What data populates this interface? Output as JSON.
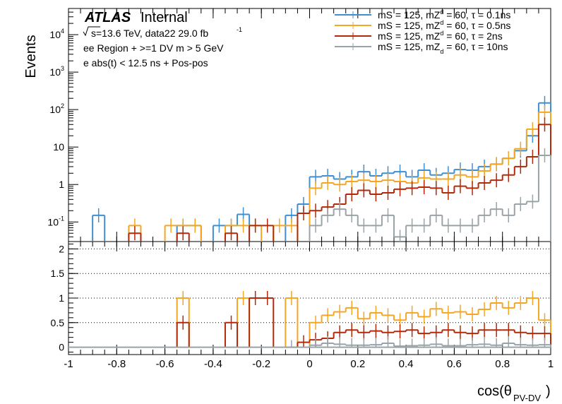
{
  "labels": {
    "atlas": "ATLAS",
    "internal": "Internal",
    "energy_prefix": "s=13.6 TeV, data22 29.0 fb",
    "energy_sup": "-1",
    "region": "ee Region + >=1 DV m > 5 GeV",
    "selection": "e abs(t) < 12.5 ns + Pos-pos",
    "ylabel": "Events",
    "xlabel": "cos(θ",
    "xlabel_sub": "PV-DV",
    "xlabel_close": ")"
  },
  "chart_data": {
    "type": "line",
    "xlim": [
      -1,
      1
    ],
    "bin_width": 0.05,
    "top_panel": {
      "ylabel": "Events",
      "yscale": "log",
      "ylim": [
        0.03,
        50000
      ],
      "ytick_labels": [
        "10^-1",
        "1",
        "10",
        "10^2",
        "10^3",
        "10^4"
      ],
      "legend_position": "top-right"
    },
    "ratio_panel": {
      "ylim": [
        -0.15,
        2.15
      ],
      "ytick_labels": [
        "0",
        "0.5",
        "1",
        "1.5",
        "2"
      ],
      "grid_lines": [
        0.5,
        1,
        1.5,
        2
      ]
    },
    "xtick_labels": [
      "-1",
      "-0.8",
      "-0.6",
      "-0.4",
      "-0.2",
      "0",
      "0.2",
      "0.4",
      "0.6",
      "0.8",
      "1"
    ],
    "xlabel": "cos(θ_PV-DV)",
    "series": [
      {
        "name": "mS = 125, mZd = 60, τ = 0.1ns",
        "legend_main": "mS = 125, mZ",
        "legend_sup": "d",
        "legend_rest": " = 60, τ = 0.1ns",
        "color": "#3f8fd2",
        "bins": [
          {
            "x": -0.875,
            "y": 0.15
          },
          {
            "x": -0.525,
            "y": 0.08
          },
          {
            "x": -0.475,
            "y": 0.08
          },
          {
            "x": -0.375,
            "y": 0.08
          },
          {
            "x": -0.325,
            "y": 0.08
          },
          {
            "x": -0.275,
            "y": 0.16
          },
          {
            "x": -0.075,
            "y": 0.15
          },
          {
            "x": -0.025,
            "y": 0.3
          },
          {
            "x": 0.025,
            "y": 1.6
          },
          {
            "x": 0.075,
            "y": 1.7
          },
          {
            "x": 0.125,
            "y": 1.4
          },
          {
            "x": 0.175,
            "y": 1.6
          },
          {
            "x": 0.225,
            "y": 2.2
          },
          {
            "x": 0.275,
            "y": 1.7
          },
          {
            "x": 0.325,
            "y": 2.0
          },
          {
            "x": 0.375,
            "y": 2.2
          },
          {
            "x": 0.425,
            "y": 1.6
          },
          {
            "x": 0.475,
            "y": 2.4
          },
          {
            "x": 0.525,
            "y": 1.8
          },
          {
            "x": 0.575,
            "y": 2.0
          },
          {
            "x": 0.625,
            "y": 2.5
          },
          {
            "x": 0.675,
            "y": 2.4
          },
          {
            "x": 0.725,
            "y": 3.0
          },
          {
            "x": 0.775,
            "y": 3.5
          },
          {
            "x": 0.825,
            "y": 5.0
          },
          {
            "x": 0.875,
            "y": 8.0
          },
          {
            "x": 0.925,
            "y": 20.0
          },
          {
            "x": 0.975,
            "y": 150.0
          }
        ],
        "ratio": []
      },
      {
        "name": "mS = 125, mZd = 60, τ = 0.5ns",
        "legend_main": "mS = 125, mZ",
        "legend_sup": "d",
        "legend_rest": " = 60, τ = 0.5ns",
        "color": "#f5a623",
        "bins": [
          {
            "x": -0.725,
            "y": 0.08
          },
          {
            "x": -0.575,
            "y": 0.08
          },
          {
            "x": -0.525,
            "y": 0.08
          },
          {
            "x": -0.475,
            "y": 0.08
          },
          {
            "x": -0.325,
            "y": 0.08
          },
          {
            "x": -0.275,
            "y": 0.08
          },
          {
            "x": -0.225,
            "y": 0.08
          },
          {
            "x": -0.125,
            "y": 0.08
          },
          {
            "x": -0.075,
            "y": 0.08
          },
          {
            "x": 0.025,
            "y": 0.8
          },
          {
            "x": 0.075,
            "y": 1.1
          },
          {
            "x": 0.125,
            "y": 1.0
          },
          {
            "x": 0.175,
            "y": 1.2
          },
          {
            "x": 0.225,
            "y": 1.3
          },
          {
            "x": 0.275,
            "y": 1.2
          },
          {
            "x": 0.325,
            "y": 1.3
          },
          {
            "x": 0.375,
            "y": 1.2
          },
          {
            "x": 0.425,
            "y": 1.1
          },
          {
            "x": 0.475,
            "y": 1.5
          },
          {
            "x": 0.525,
            "y": 1.4
          },
          {
            "x": 0.575,
            "y": 1.4
          },
          {
            "x": 0.625,
            "y": 1.8
          },
          {
            "x": 0.675,
            "y": 1.6
          },
          {
            "x": 0.725,
            "y": 2.3
          },
          {
            "x": 0.775,
            "y": 3.5
          },
          {
            "x": 0.825,
            "y": 5.0
          },
          {
            "x": 0.875,
            "y": 9.0
          },
          {
            "x": 0.925,
            "y": 30.0
          },
          {
            "x": 0.975,
            "y": 85.0
          }
        ],
        "ratio": [
          {
            "x": -0.525,
            "y": 1.0
          },
          {
            "x": -0.275,
            "y": 1.0
          },
          {
            "x": -0.075,
            "y": 1.0
          },
          {
            "x": 0.025,
            "y": 0.5
          },
          {
            "x": 0.075,
            "y": 0.65
          },
          {
            "x": 0.125,
            "y": 0.72
          },
          {
            "x": 0.175,
            "y": 0.8
          },
          {
            "x": 0.225,
            "y": 0.58
          },
          {
            "x": 0.275,
            "y": 0.7
          },
          {
            "x": 0.325,
            "y": 0.65
          },
          {
            "x": 0.375,
            "y": 0.55
          },
          {
            "x": 0.425,
            "y": 0.7
          },
          {
            "x": 0.475,
            "y": 0.62
          },
          {
            "x": 0.525,
            "y": 0.78
          },
          {
            "x": 0.575,
            "y": 0.7
          },
          {
            "x": 0.625,
            "y": 0.72
          },
          {
            "x": 0.675,
            "y": 0.67
          },
          {
            "x": 0.725,
            "y": 0.77
          },
          {
            "x": 0.775,
            "y": 0.9
          },
          {
            "x": 0.825,
            "y": 0.8
          },
          {
            "x": 0.875,
            "y": 0.9
          },
          {
            "x": 0.925,
            "y": 1.0
          },
          {
            "x": 0.975,
            "y": 0.55
          }
        ]
      },
      {
        "name": "mS = 125, mZd = 60, τ = 2ns",
        "legend_main": "mS = 125, mZ",
        "legend_sup": "d",
        "legend_rest": " = 60, τ = 2ns",
        "color": "#b22a0a",
        "bins": [
          {
            "x": -0.725,
            "y": 0.05
          },
          {
            "x": -0.525,
            "y": 0.05
          },
          {
            "x": -0.325,
            "y": 0.05
          },
          {
            "x": -0.225,
            "y": 0.08
          },
          {
            "x": -0.175,
            "y": 0.08
          },
          {
            "x": -0.025,
            "y": 0.17
          },
          {
            "x": 0.025,
            "y": 0.2
          },
          {
            "x": 0.075,
            "y": 0.25
          },
          {
            "x": 0.125,
            "y": 0.3
          },
          {
            "x": 0.175,
            "y": 0.55
          },
          {
            "x": 0.225,
            "y": 0.7
          },
          {
            "x": 0.275,
            "y": 0.55
          },
          {
            "x": 0.325,
            "y": 0.6
          },
          {
            "x": 0.375,
            "y": 0.75
          },
          {
            "x": 0.425,
            "y": 0.8
          },
          {
            "x": 0.475,
            "y": 0.85
          },
          {
            "x": 0.525,
            "y": 0.8
          },
          {
            "x": 0.575,
            "y": 0.6
          },
          {
            "x": 0.625,
            "y": 0.9
          },
          {
            "x": 0.675,
            "y": 0.8
          },
          {
            "x": 0.725,
            "y": 1.1
          },
          {
            "x": 0.775,
            "y": 1.3
          },
          {
            "x": 0.825,
            "y": 1.8
          },
          {
            "x": 0.875,
            "y": 3.0
          },
          {
            "x": 0.925,
            "y": 5.5
          },
          {
            "x": 0.975,
            "y": 40.0
          }
        ],
        "ratio": [
          {
            "x": -0.525,
            "y": 0.5
          },
          {
            "x": -0.325,
            "y": 0.5
          },
          {
            "x": -0.225,
            "y": 1.0
          },
          {
            "x": -0.175,
            "y": 1.0
          },
          {
            "x": -0.025,
            "y": 0.1
          },
          {
            "x": 0.025,
            "y": 0.15
          },
          {
            "x": 0.075,
            "y": 0.18
          },
          {
            "x": 0.125,
            "y": 0.3
          },
          {
            "x": 0.175,
            "y": 0.35
          },
          {
            "x": 0.225,
            "y": 0.3
          },
          {
            "x": 0.275,
            "y": 0.33
          },
          {
            "x": 0.325,
            "y": 0.3
          },
          {
            "x": 0.375,
            "y": 0.32
          },
          {
            "x": 0.425,
            "y": 0.35
          },
          {
            "x": 0.475,
            "y": 0.28
          },
          {
            "x": 0.525,
            "y": 0.3
          },
          {
            "x": 0.575,
            "y": 0.35
          },
          {
            "x": 0.625,
            "y": 0.3
          },
          {
            "x": 0.675,
            "y": 0.28
          },
          {
            "x": 0.725,
            "y": 0.35
          },
          {
            "x": 0.775,
            "y": 0.35
          },
          {
            "x": 0.825,
            "y": 0.35
          },
          {
            "x": 0.875,
            "y": 0.3
          },
          {
            "x": 0.925,
            "y": 0.28
          },
          {
            "x": 0.975,
            "y": 0.28
          }
        ]
      },
      {
        "name": "mS = 125, mZd = 60, τ = 10ns",
        "legend_main": "mS = 125, mZ",
        "legend_sub": "d",
        "legend_rest": " = 60, τ = 10ns",
        "color": "#9aa3a8",
        "bins": [
          {
            "x": 0.025,
            "y": 0.08
          },
          {
            "x": 0.075,
            "y": 0.15
          },
          {
            "x": 0.125,
            "y": 0.22
          },
          {
            "x": 0.175,
            "y": 0.15
          },
          {
            "x": 0.225,
            "y": 0.08
          },
          {
            "x": 0.275,
            "y": 0.08
          },
          {
            "x": 0.325,
            "y": 0.15
          },
          {
            "x": 0.375,
            "y": 0.04
          },
          {
            "x": 0.425,
            "y": 0.08
          },
          {
            "x": 0.475,
            "y": 0.08
          },
          {
            "x": 0.525,
            "y": 0.15
          },
          {
            "x": 0.575,
            "y": 0.08
          },
          {
            "x": 0.625,
            "y": 0.08
          },
          {
            "x": 0.675,
            "y": 0.08
          },
          {
            "x": 0.725,
            "y": 0.15
          },
          {
            "x": 0.775,
            "y": 0.22
          },
          {
            "x": 0.825,
            "y": 0.15
          },
          {
            "x": 0.875,
            "y": 0.3
          },
          {
            "x": 0.925,
            "y": 0.35
          },
          {
            "x": 0.975,
            "y": 6.0
          }
        ],
        "ratio": [
          {
            "x": -0.075,
            "y": 0.0
          },
          {
            "x": 0.025,
            "y": 0.04
          },
          {
            "x": 0.075,
            "y": 0.08
          },
          {
            "x": 0.125,
            "y": 0.06
          },
          {
            "x": 0.175,
            "y": 0.04
          },
          {
            "x": 0.225,
            "y": 0.04
          },
          {
            "x": 0.275,
            "y": 0.05
          },
          {
            "x": 0.325,
            "y": 0.08
          },
          {
            "x": 0.375,
            "y": 0.02
          },
          {
            "x": 0.425,
            "y": 0.03
          },
          {
            "x": 0.475,
            "y": 0.04
          },
          {
            "x": 0.525,
            "y": 0.06
          },
          {
            "x": 0.575,
            "y": 0.03
          },
          {
            "x": 0.625,
            "y": 0.03
          },
          {
            "x": 0.675,
            "y": 0.05
          },
          {
            "x": 0.725,
            "y": 0.06
          },
          {
            "x": 0.775,
            "y": 0.04
          },
          {
            "x": 0.825,
            "y": 0.08
          },
          {
            "x": 0.875,
            "y": 0.05
          },
          {
            "x": 0.925,
            "y": 0.04
          },
          {
            "x": 0.975,
            "y": 0.05
          }
        ]
      }
    ]
  }
}
